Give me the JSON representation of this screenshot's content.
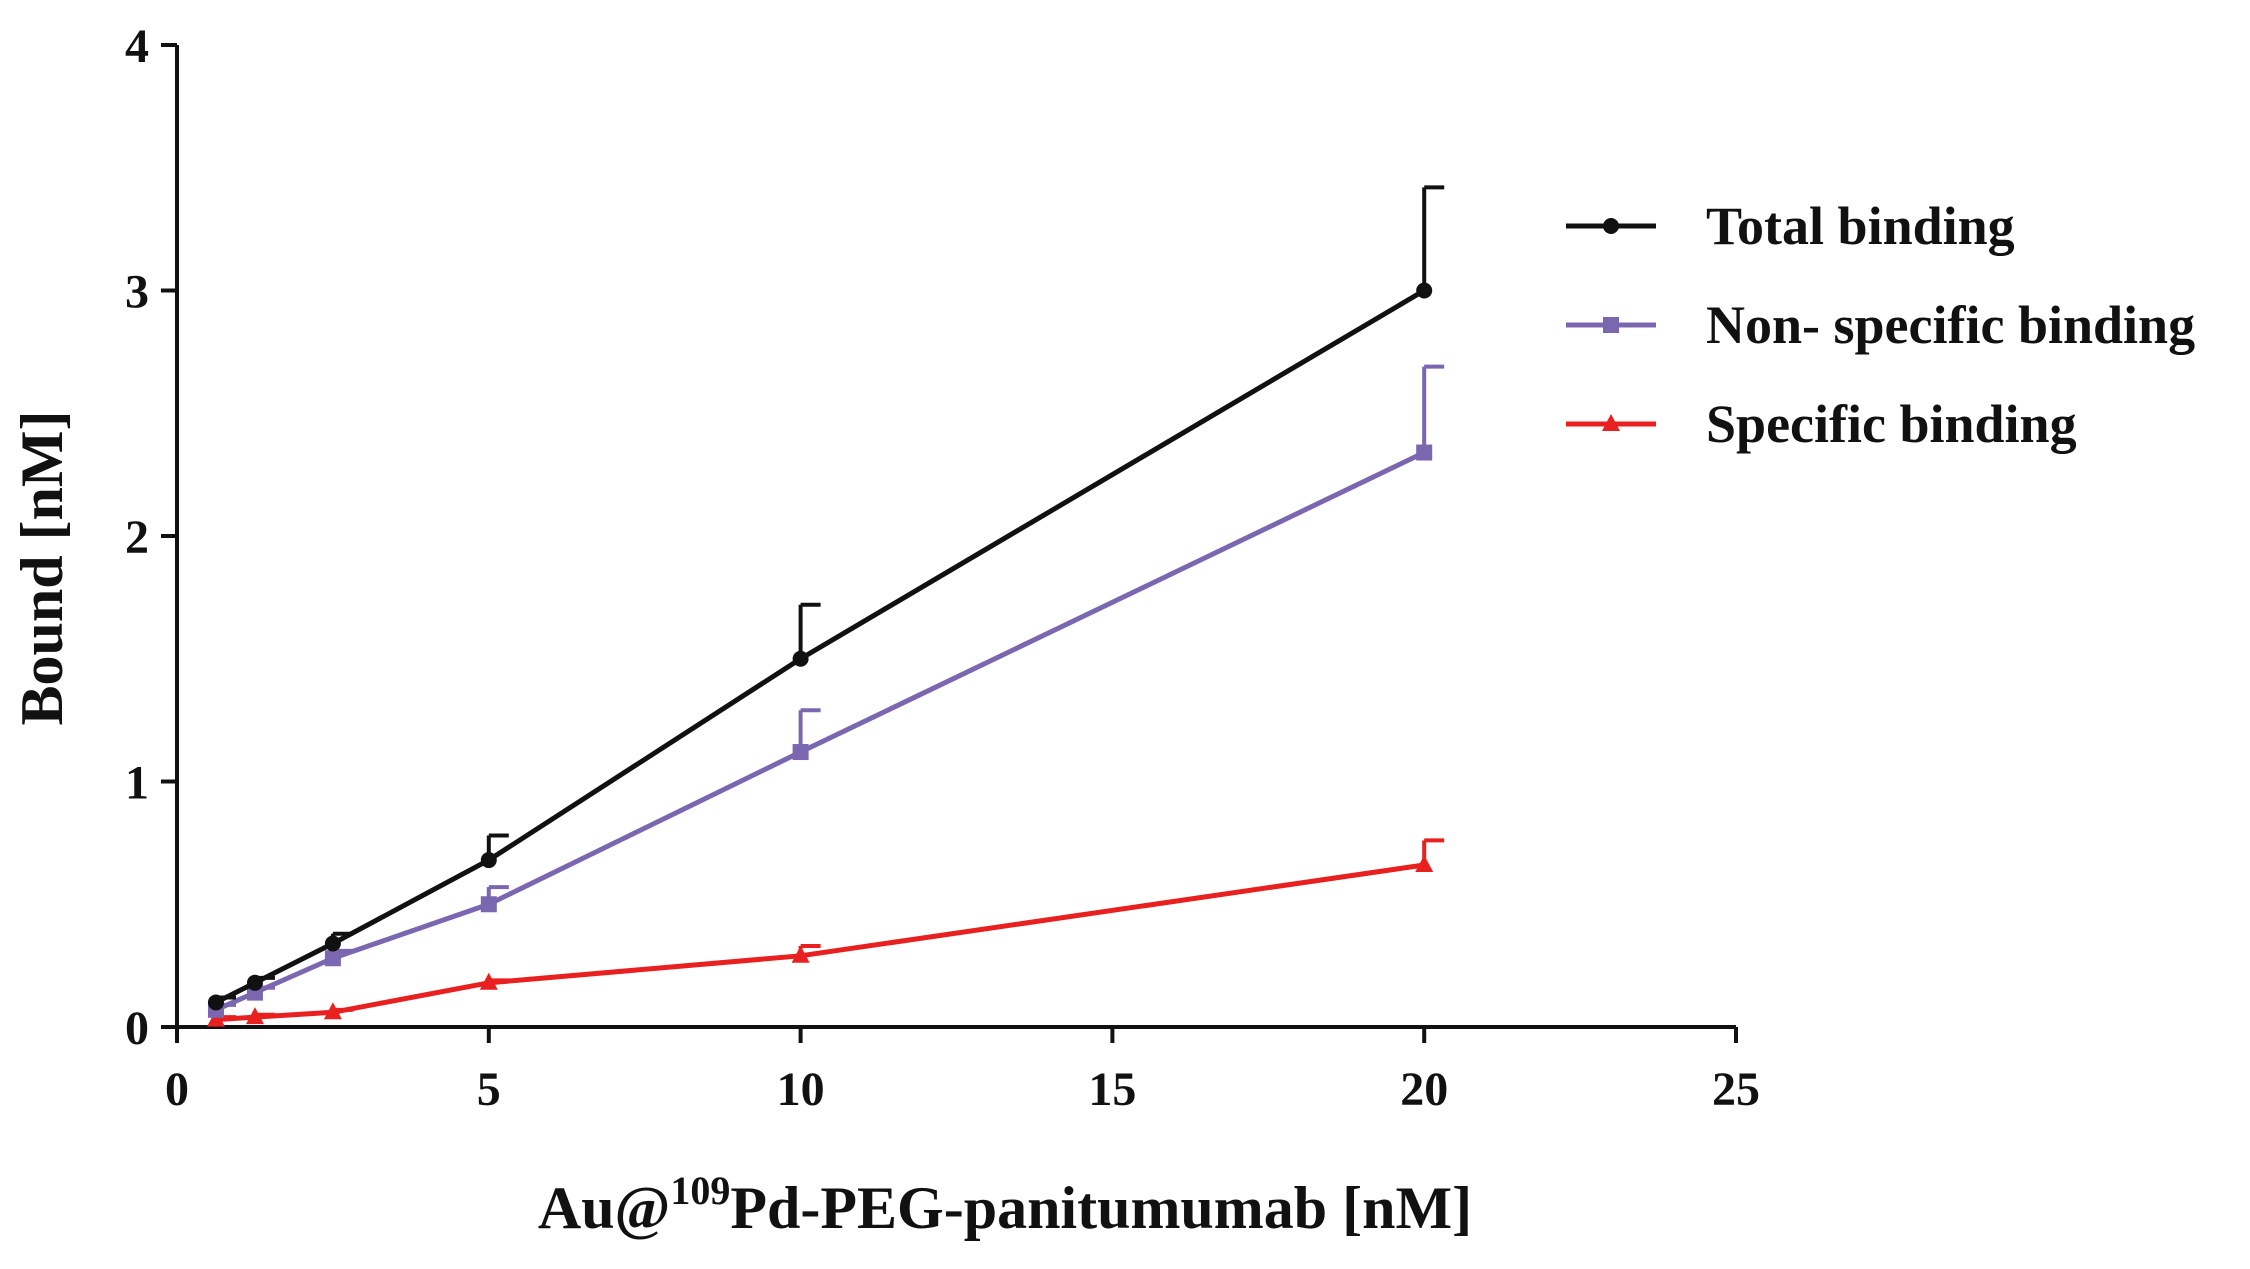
{
  "chart_data": {
    "type": "line",
    "xlabel": {
      "main": "Au@",
      "superscript": "109",
      "rest": "Pd-PEG-panitumumab [nM]"
    },
    "ylabel": "Bound [nM]",
    "xlim": [
      0,
      25
    ],
    "ylim": [
      0,
      4
    ],
    "xticks": [
      "0",
      "5",
      "10",
      "15",
      "20",
      "25"
    ],
    "yticks": [
      "0",
      "1",
      "2",
      "3",
      "4"
    ],
    "grid": false,
    "legend_position": "right",
    "x": [
      0.625,
      1.25,
      2.5,
      5,
      10,
      20
    ],
    "series": [
      {
        "name": "Total binding",
        "marker": "circle",
        "color": "#111111",
        "values": [
          0.1,
          0.18,
          0.34,
          0.68,
          1.5,
          3.0
        ],
        "errors": [
          0.02,
          0.02,
          0.04,
          0.1,
          0.22,
          0.42
        ]
      },
      {
        "name": "Non- specific binding",
        "marker": "square",
        "color": "#7b66b0",
        "values": [
          0.07,
          0.14,
          0.28,
          0.5,
          1.12,
          2.34
        ],
        "errors": [
          0.02,
          0.02,
          0.03,
          0.07,
          0.17,
          0.35
        ]
      },
      {
        "name": "Specific binding",
        "marker": "triangle",
        "color": "#e8201f",
        "values": [
          0.03,
          0.04,
          0.06,
          0.18,
          0.29,
          0.66
        ],
        "errors": [
          0.01,
          0.01,
          0.01,
          0.01,
          0.04,
          0.1
        ]
      }
    ]
  }
}
